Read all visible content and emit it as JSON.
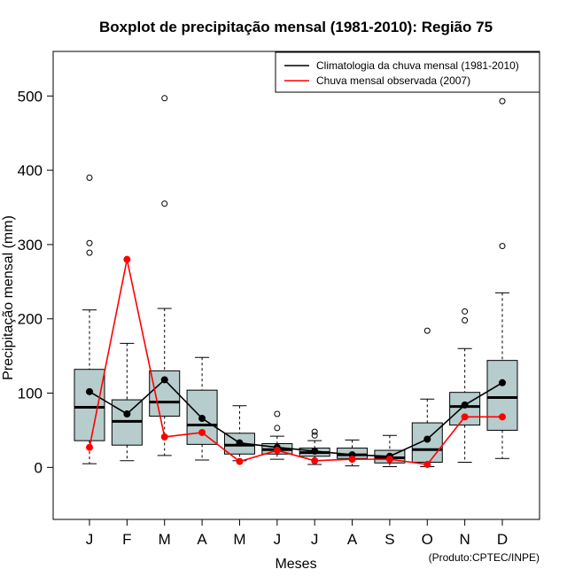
{
  "chart_data": {
    "type": "boxplot",
    "title": "Boxplot de precipitação mensal (1981-2010): Região 75",
    "xlabel": "Meses",
    "ylabel": "Precipitação mensal (mm)",
    "ylim": [
      -70,
      560
    ],
    "yticks": [
      0,
      100,
      200,
      300,
      400,
      500
    ],
    "categories": [
      "J",
      "F",
      "M",
      "A",
      "M",
      "J",
      "J",
      "A",
      "S",
      "O",
      "N",
      "D"
    ],
    "boxes": [
      {
        "low": 5,
        "q1": 36,
        "median": 81,
        "q3": 132,
        "high": 212,
        "outliers": [
          289,
          302,
          390
        ]
      },
      {
        "low": 9,
        "q1": 30,
        "median": 62,
        "q3": 91,
        "high": 167,
        "outliers": []
      },
      {
        "low": 16,
        "q1": 69,
        "median": 88,
        "q3": 130,
        "high": 214,
        "outliers": [
          355,
          497
        ]
      },
      {
        "low": 10,
        "q1": 31,
        "median": 57,
        "q3": 104,
        "high": 148,
        "outliers": []
      },
      {
        "low": 9,
        "q1": 18,
        "median": 30,
        "q3": 46,
        "high": 83,
        "outliers": []
      },
      {
        "low": 11,
        "q1": 18,
        "median": 24,
        "q3": 32,
        "high": 42,
        "outliers": [
          53,
          72
        ]
      },
      {
        "low": 4,
        "q1": 15,
        "median": 20,
        "q3": 26,
        "high": 36,
        "outliers": [
          43,
          48
        ]
      },
      {
        "low": 2,
        "q1": 12,
        "median": 17,
        "q3": 26,
        "high": 37,
        "outliers": []
      },
      {
        "low": 1,
        "q1": 6,
        "median": 13,
        "q3": 23,
        "high": 43,
        "outliers": []
      },
      {
        "low": 1,
        "q1": 7,
        "median": 24,
        "q3": 60,
        "high": 92,
        "outliers": [
          184
        ]
      },
      {
        "low": 7,
        "q1": 57,
        "median": 82,
        "q3": 101,
        "high": 160,
        "outliers": [
          198,
          210
        ]
      },
      {
        "low": 12,
        "q1": 50,
        "median": 94,
        "q3": 144,
        "high": 235,
        "outliers": [
          298,
          493
        ]
      }
    ],
    "series": [
      {
        "name": "Climatologia da chuva mensal (1981-2010)",
        "color": "#000000",
        "values": [
          102,
          72,
          118,
          66,
          33,
          27,
          22,
          17,
          15,
          38,
          84,
          114
        ]
      },
      {
        "name": "Chuva mensal observada (2007)",
        "color": "#ff0000",
        "values": [
          27,
          280,
          41,
          47,
          8,
          23,
          9,
          11,
          11,
          4,
          68,
          68
        ]
      }
    ],
    "box_color": "#b7cccc",
    "legend_position": "top-right",
    "credit": "(Produto:CPTEC/INPE)"
  }
}
